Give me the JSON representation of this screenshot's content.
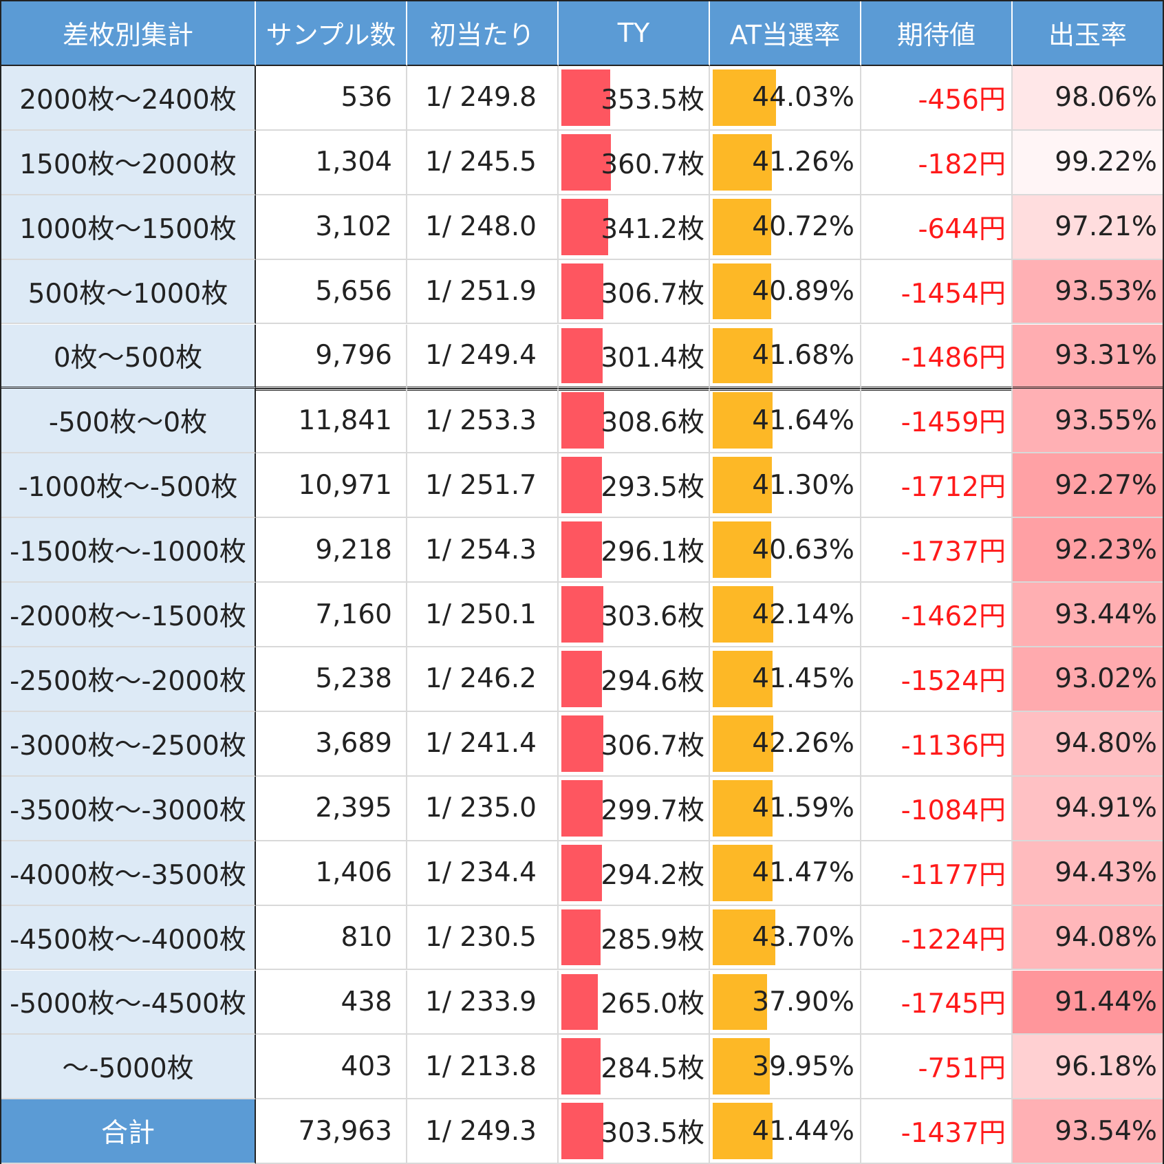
{
  "headers": [
    "差枚別集計",
    "サンプル数",
    "初当たり",
    "TY",
    "AT当選率",
    "期待値",
    "出玉率"
  ],
  "rows": [
    {
      "range": "2000枚～2400枚",
      "samples": "536",
      "first_hit": "1/ 249.8",
      "ty": "353.5枚",
      "ty_value": 353.5,
      "at_rate": "44.03%",
      "at_value": 44.03,
      "ev": "-456円",
      "payout": "98.06%",
      "payout_value": 98.06
    },
    {
      "range": "1500枚～2000枚",
      "samples": "1,304",
      "first_hit": "1/ 245.5",
      "ty": "360.7枚",
      "ty_value": 360.7,
      "at_rate": "41.26%",
      "at_value": 41.26,
      "ev": "-182円",
      "payout": "99.22%",
      "payout_value": 99.22
    },
    {
      "range": "1000枚～1500枚",
      "samples": "3,102",
      "first_hit": "1/ 248.0",
      "ty": "341.2枚",
      "ty_value": 341.2,
      "at_rate": "40.72%",
      "at_value": 40.72,
      "ev": "-644円",
      "payout": "97.21%",
      "payout_value": 97.21
    },
    {
      "range": "500枚～1000枚",
      "samples": "5,656",
      "first_hit": "1/ 251.9",
      "ty": "306.7枚",
      "ty_value": 306.7,
      "at_rate": "40.89%",
      "at_value": 40.89,
      "ev": "-1454円",
      "payout": "93.53%",
      "payout_value": 93.53
    },
    {
      "range": "0枚～500枚",
      "samples": "9,796",
      "first_hit": "1/ 249.4",
      "ty": "301.4枚",
      "ty_value": 301.4,
      "at_rate": "41.68%",
      "at_value": 41.68,
      "ev": "-1486円",
      "payout": "93.31%",
      "payout_value": 93.31
    },
    {
      "range": "-500枚～0枚",
      "samples": "11,841",
      "first_hit": "1/ 253.3",
      "ty": "308.6枚",
      "ty_value": 308.6,
      "at_rate": "41.64%",
      "at_value": 41.64,
      "ev": "-1459円",
      "payout": "93.55%",
      "payout_value": 93.55
    },
    {
      "range": "-1000枚～-500枚",
      "samples": "10,971",
      "first_hit": "1/ 251.7",
      "ty": "293.5枚",
      "ty_value": 293.5,
      "at_rate": "41.30%",
      "at_value": 41.3,
      "ev": "-1712円",
      "payout": "92.27%",
      "payout_value": 92.27
    },
    {
      "range": "-1500枚～-1000枚",
      "samples": "9,218",
      "first_hit": "1/ 254.3",
      "ty": "296.1枚",
      "ty_value": 296.1,
      "at_rate": "40.63%",
      "at_value": 40.63,
      "ev": "-1737円",
      "payout": "92.23%",
      "payout_value": 92.23
    },
    {
      "range": "-2000枚～-1500枚",
      "samples": "7,160",
      "first_hit": "1/ 250.1",
      "ty": "303.6枚",
      "ty_value": 303.6,
      "at_rate": "42.14%",
      "at_value": 42.14,
      "ev": "-1462円",
      "payout": "93.44%",
      "payout_value": 93.44
    },
    {
      "range": "-2500枚～-2000枚",
      "samples": "5,238",
      "first_hit": "1/ 246.2",
      "ty": "294.6枚",
      "ty_value": 294.6,
      "at_rate": "41.45%",
      "at_value": 41.45,
      "ev": "-1524円",
      "payout": "93.02%",
      "payout_value": 93.02
    },
    {
      "range": "-3000枚～-2500枚",
      "samples": "3,689",
      "first_hit": "1/ 241.4",
      "ty": "306.7枚",
      "ty_value": 306.7,
      "at_rate": "42.26%",
      "at_value": 42.26,
      "ev": "-1136円",
      "payout": "94.80%",
      "payout_value": 94.8
    },
    {
      "range": "-3500枚～-3000枚",
      "samples": "2,395",
      "first_hit": "1/ 235.0",
      "ty": "299.7枚",
      "ty_value": 299.7,
      "at_rate": "41.59%",
      "at_value": 41.59,
      "ev": "-1084円",
      "payout": "94.91%",
      "payout_value": 94.91
    },
    {
      "range": "-4000枚～-3500枚",
      "samples": "1,406",
      "first_hit": "1/ 234.4",
      "ty": "294.2枚",
      "ty_value": 294.2,
      "at_rate": "41.47%",
      "at_value": 41.47,
      "ev": "-1177円",
      "payout": "94.43%",
      "payout_value": 94.43
    },
    {
      "range": "-4500枚～-4000枚",
      "samples": "810",
      "first_hit": "1/ 230.5",
      "ty": "285.9枚",
      "ty_value": 285.9,
      "at_rate": "43.70%",
      "at_value": 43.7,
      "ev": "-1224円",
      "payout": "94.08%",
      "payout_value": 94.08
    },
    {
      "range": "-5000枚～-4500枚",
      "samples": "438",
      "first_hit": "1/ 233.9",
      "ty": "265.0枚",
      "ty_value": 265.0,
      "at_rate": "37.90%",
      "at_value": 37.9,
      "ev": "-1745円",
      "payout": "91.44%",
      "payout_value": 91.44
    },
    {
      "range": "～-5000枚",
      "samples": "403",
      "first_hit": "1/ 213.8",
      "ty": "284.5枚",
      "ty_value": 284.5,
      "at_rate": "39.95%",
      "at_value": 39.95,
      "ev": "-751円",
      "payout": "96.18%",
      "payout_value": 96.18
    }
  ],
  "total": {
    "range": "合計",
    "samples": "73,963",
    "first_hit": "1/ 249.3",
    "ty": "303.5枚",
    "ty_value": 303.5,
    "at_rate": "41.44%",
    "at_value": 41.44,
    "ev": "-1437円",
    "payout": "93.54%",
    "payout_value": 93.54
  },
  "colors": {
    "header_bg": "#5b9bd5",
    "label_bg": "#ddeaf6",
    "ty_bar": "#fe5660",
    "at_bar": "#fdb826",
    "negative_ev": "#ff1a1a",
    "payout_heat": "#f8696b"
  }
}
